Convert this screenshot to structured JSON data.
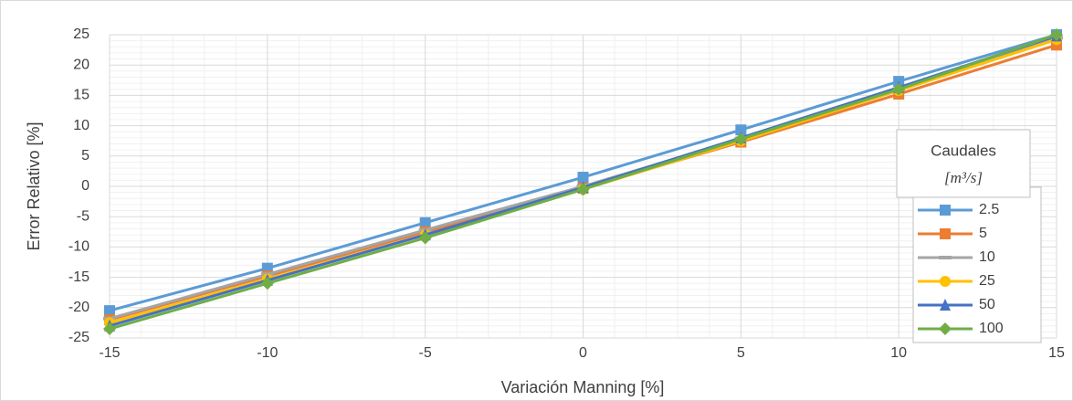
{
  "chart_data": {
    "type": "line",
    "x_label": "Variación Manning [%]",
    "y_label": "Error Relativo [%]",
    "legend_title": "Caudales",
    "legend_unit": "[m³/s]",
    "legend_position": "right",
    "grid": true,
    "x": [
      -15,
      -10,
      -5,
      0,
      5,
      10,
      15
    ],
    "xlim": [
      -15,
      15
    ],
    "xticks": [
      -15,
      -10,
      -5,
      0,
      5,
      10,
      15
    ],
    "ylim": [
      -25,
      25
    ],
    "yticks": [
      -25,
      -20,
      -15,
      -10,
      -5,
      0,
      5,
      10,
      15,
      20,
      25
    ],
    "series": [
      {
        "name": "2.5",
        "color": "#5b9bd5",
        "marker": "square",
        "values": [
          -20.5,
          -13.5,
          -6,
          1.5,
          9.3,
          17.3,
          25
        ]
      },
      {
        "name": "5",
        "color": "#ed7d31",
        "marker": "square",
        "values": [
          -22,
          -14.8,
          -7.5,
          -0.3,
          7.3,
          15.2,
          23.3
        ]
      },
      {
        "name": "10",
        "color": "#a5a5a5",
        "marker": "dash",
        "values": [
          -21.8,
          -14.5,
          -7.2,
          0,
          7.8,
          16,
          24.5
        ]
      },
      {
        "name": "25",
        "color": "#ffc000",
        "marker": "circle",
        "values": [
          -22.5,
          -15.3,
          -8,
          -0.5,
          7.5,
          15.8,
          24.2
        ]
      },
      {
        "name": "50",
        "color": "#4472c4",
        "marker": "triangle",
        "values": [
          -23,
          -15.5,
          -8,
          -0.2,
          8,
          16.3,
          24.8
        ]
      },
      {
        "name": "100",
        "color": "#70ad47",
        "marker": "diamond",
        "values": [
          -23.5,
          -16,
          -8.5,
          -0.5,
          7.8,
          16,
          25
        ]
      }
    ]
  }
}
